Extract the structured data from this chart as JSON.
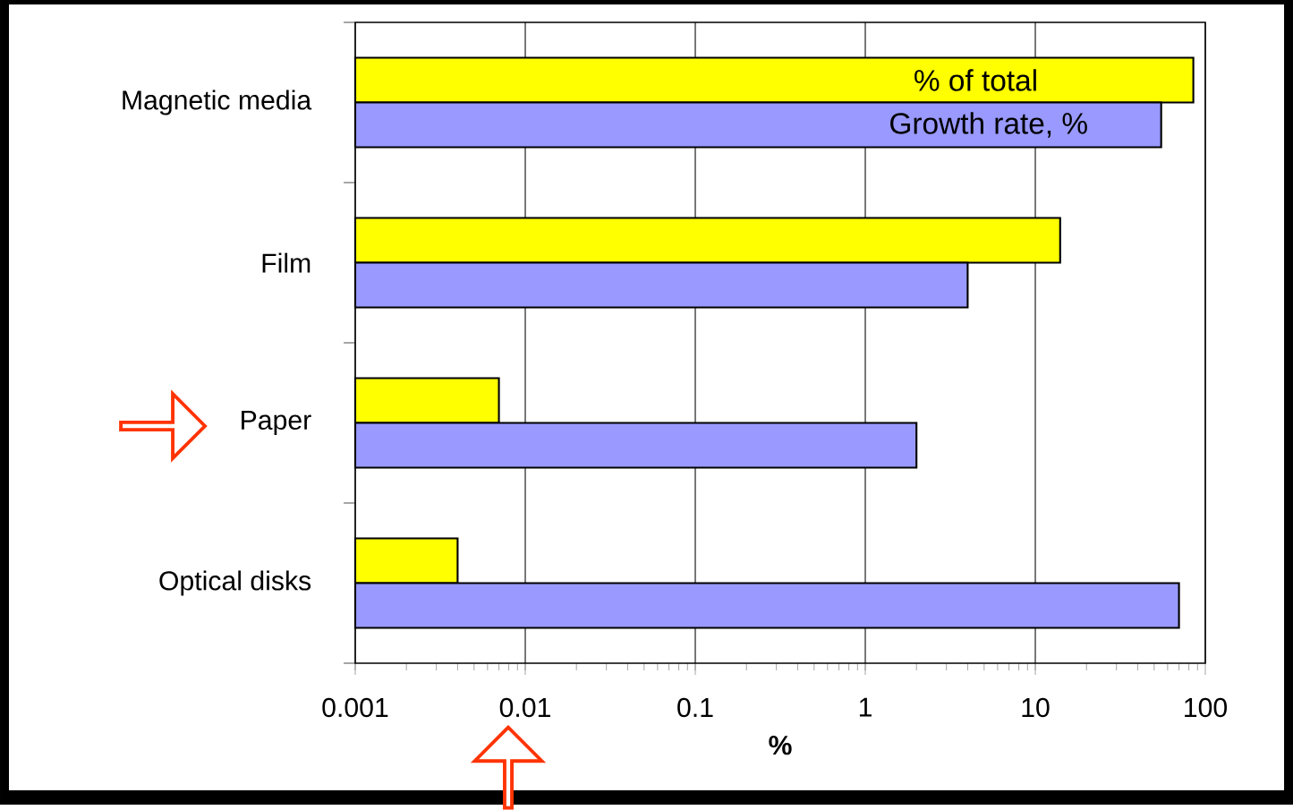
{
  "chart_data": {
    "type": "bar",
    "orientation": "horizontal",
    "log": "x",
    "xlabel": "%",
    "categories": [
      "Magnetic media",
      "Film",
      "Paper",
      "Optical disks"
    ],
    "series": [
      {
        "name": "% of  total",
        "color": "#ffff00",
        "values": [
          85,
          14,
          0.007,
          0.004
        ]
      },
      {
        "name": "Growth rate, %",
        "color": "#9999ff",
        "values": [
          55,
          4,
          2,
          70
        ]
      }
    ],
    "xlim": [
      0.001,
      100
    ],
    "xticks": [
      0.001,
      0.01,
      0.1,
      1,
      10,
      100
    ],
    "grid": "x"
  }
}
